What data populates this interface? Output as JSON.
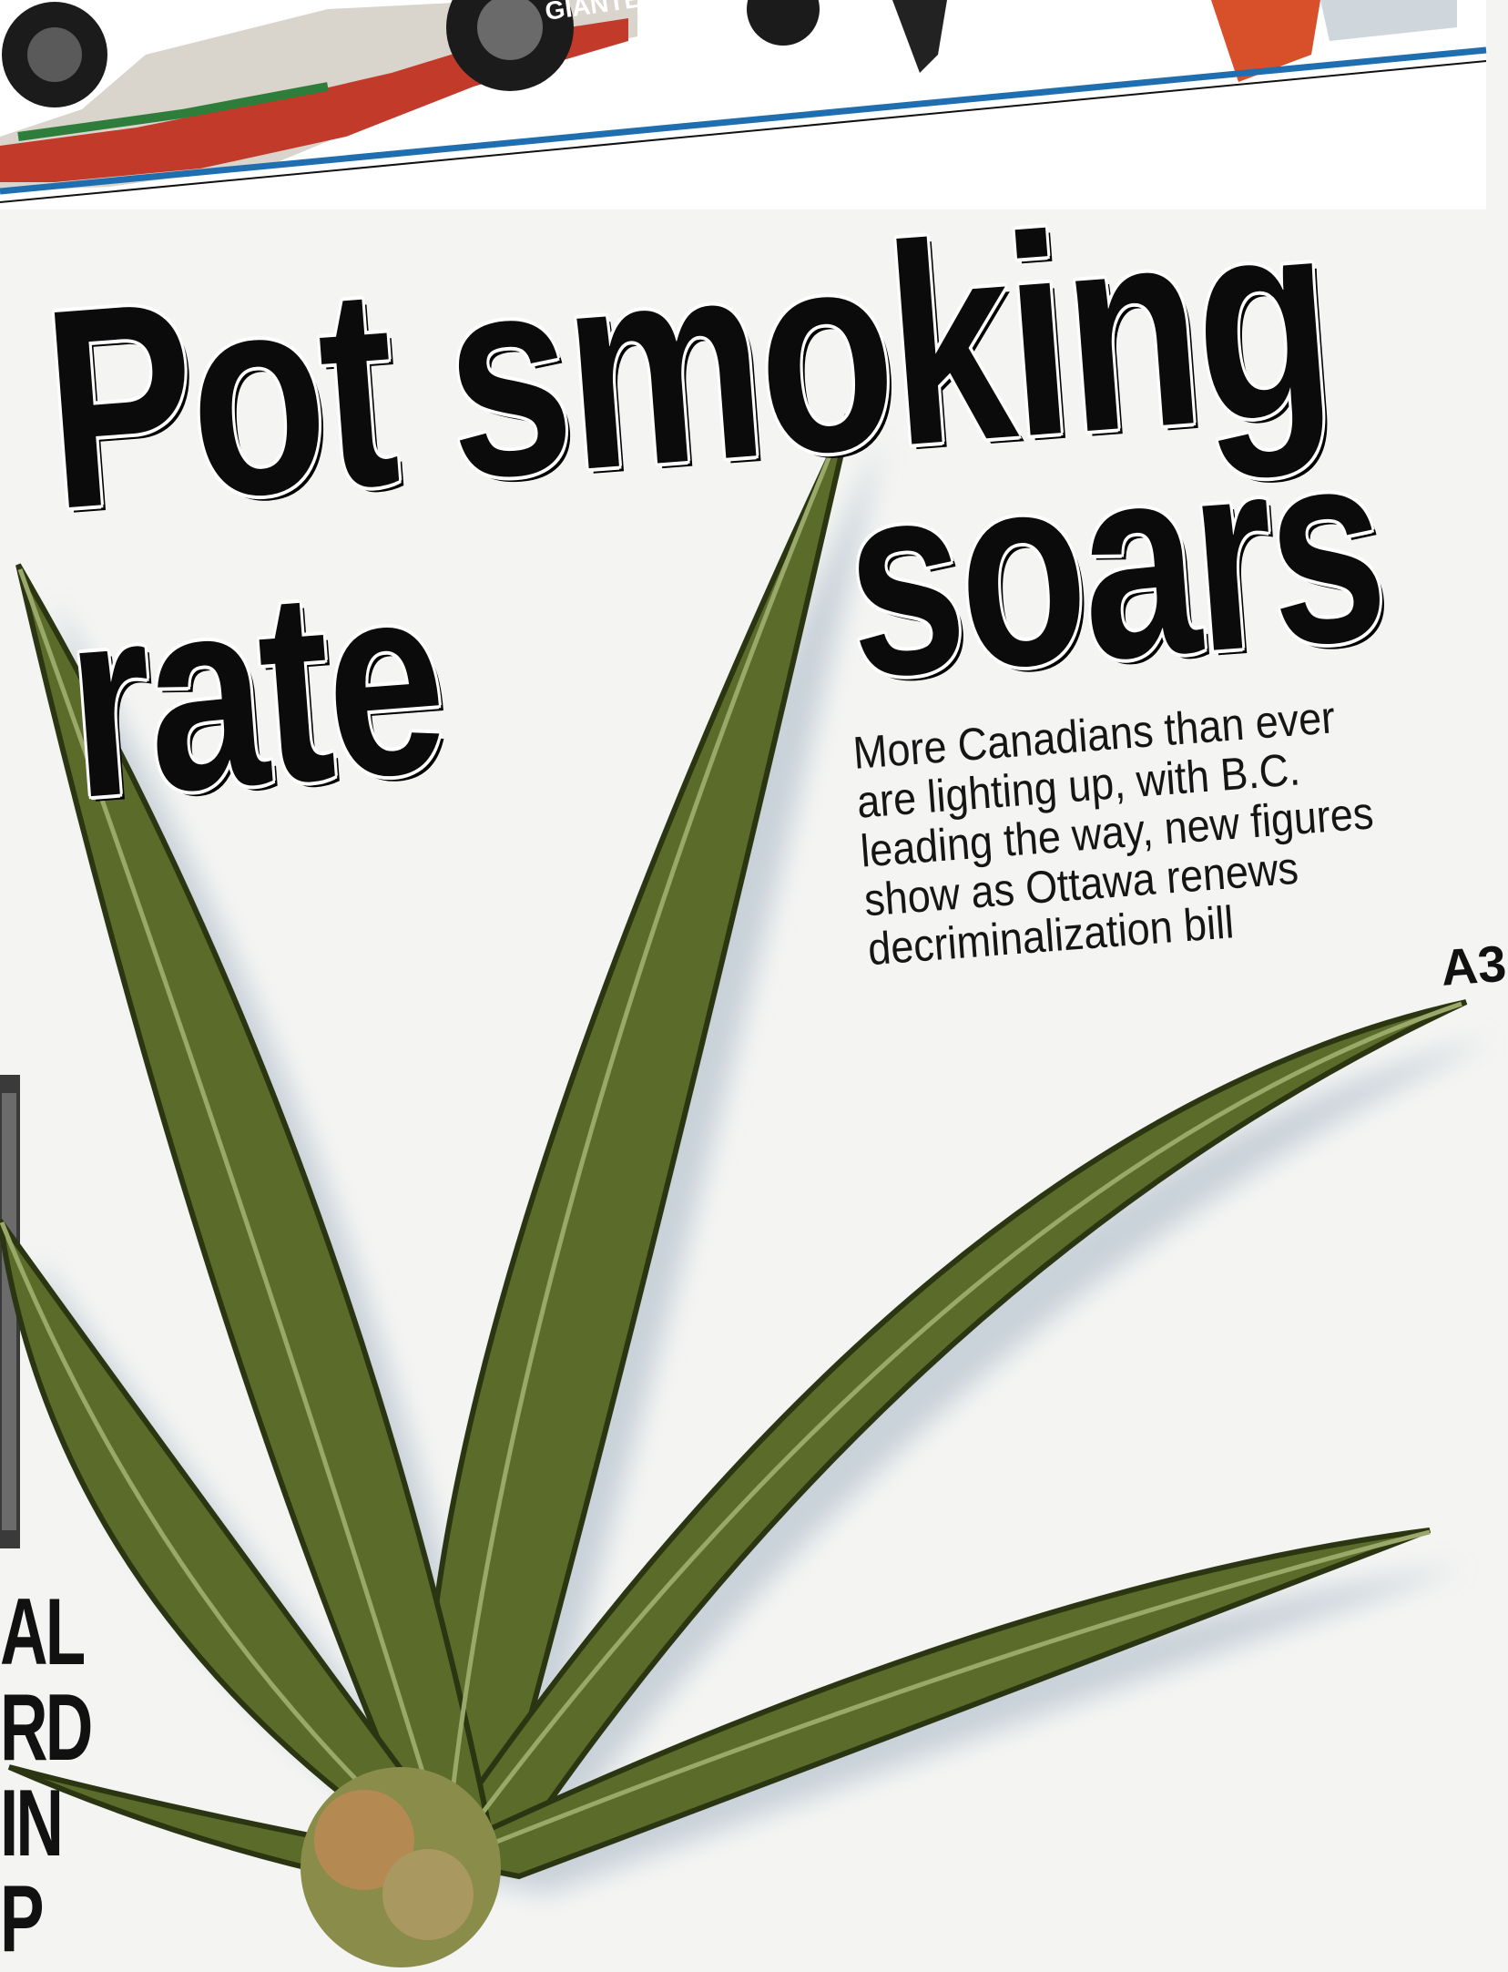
{
  "headline": {
    "line1": "Pot smoking",
    "line2": "soars",
    "line3": "rate"
  },
  "deck": {
    "lines": [
      "More Canadians than ever",
      "are lighting up, with B.C.",
      "leading the way, new figures",
      "show as Ottawa renews",
      "decriminalization bill"
    ],
    "page_ref": "A3"
  },
  "car_sponsor_text": "GIANTE",
  "left_column_snippets": [
    "AL",
    "RD",
    "IN",
    "P"
  ],
  "colors": {
    "rule_blue": "#1f6fb0",
    "leaf_green": "#5b6b2a",
    "headline_black": "#0b0b0b"
  }
}
